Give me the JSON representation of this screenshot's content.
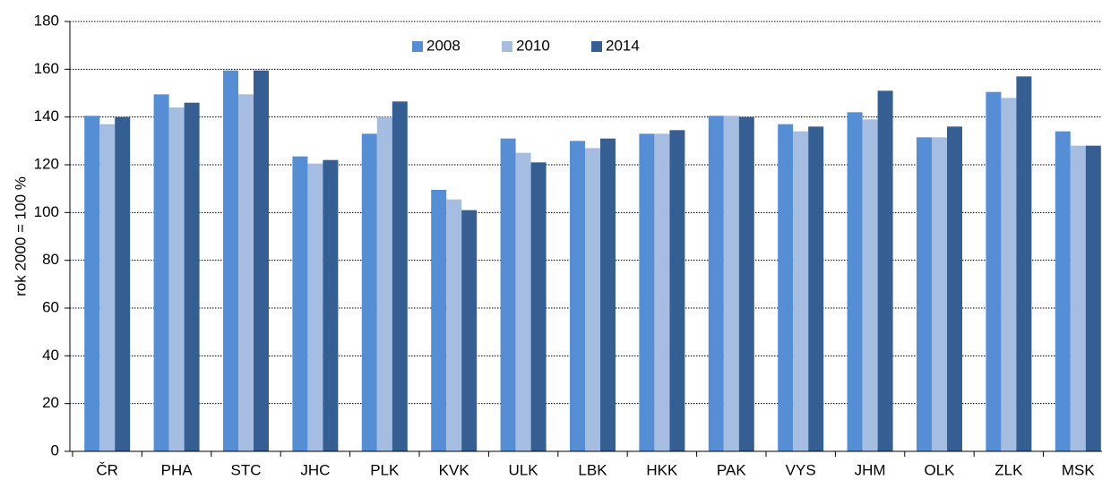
{
  "chart_data": {
    "type": "bar",
    "y_label": "rok 2000 = 100 %",
    "categories": [
      "ČR",
      "PHA",
      "STC",
      "JHC",
      "PLK",
      "KVK",
      "ULK",
      "LBK",
      "HKK",
      "PAK",
      "VYS",
      "JHM",
      "OLK",
      "ZLK",
      "MSK"
    ],
    "series": [
      {
        "name": "2008",
        "color": "#558ed5",
        "values": [
          140.5,
          149.5,
          159.5,
          123.5,
          133,
          109.5,
          131,
          130,
          133,
          140.5,
          137,
          142,
          131.5,
          150.5,
          134
        ]
      },
      {
        "name": "2010",
        "color": "#a4bde0",
        "values": [
          137,
          144,
          149.5,
          120.5,
          140,
          105.5,
          125,
          127,
          133,
          140.5,
          134,
          139,
          131.5,
          148,
          128
        ]
      },
      {
        "name": "2014",
        "color": "#355f93",
        "values": [
          140,
          146,
          159.5,
          122,
          146.5,
          101,
          121,
          131,
          134.5,
          140,
          136,
          151,
          136,
          157,
          128
        ]
      }
    ],
    "ylim": [
      0,
      180
    ],
    "yticks": [
      0,
      20,
      40,
      60,
      80,
      100,
      120,
      140,
      160,
      180
    ],
    "grid": true,
    "legend": "top"
  }
}
